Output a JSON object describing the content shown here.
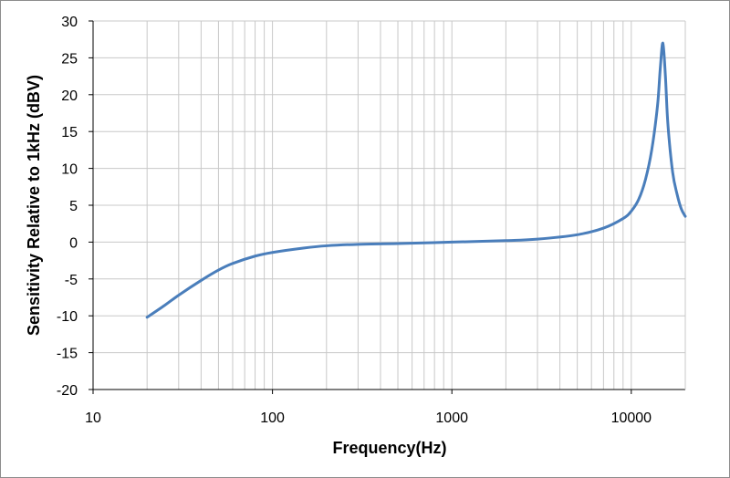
{
  "chart_data": {
    "type": "line",
    "xlabel": "Frequency(Hz)",
    "ylabel": "Sensitivity Relative to 1kHz (dBV)",
    "x_scale": "log",
    "xlim": [
      10,
      20000
    ],
    "ylim": [
      -20,
      30
    ],
    "x_ticks": [
      "10",
      "100",
      "1000",
      "10000"
    ],
    "y_ticks": [
      "30",
      "25",
      "20",
      "15",
      "10",
      "5",
      "0",
      "-5",
      "-10",
      "-15",
      "-20"
    ],
    "grid": true,
    "legend": "none",
    "colors": {
      "series": "#4a7ebb",
      "grid": "#c8c8c8",
      "axis": "#000000"
    },
    "series": [
      {
        "x": [
          20,
          25,
          30,
          40,
          50,
          60,
          80,
          100,
          150,
          200,
          300,
          500,
          1000,
          2000,
          3000,
          5000,
          7000,
          9000,
          10000,
          11000,
          12000,
          13000,
          14000,
          14500,
          15000,
          15500,
          16000,
          17000,
          18000,
          19000,
          20000
        ],
        "y": [
          -10.2,
          -8.6,
          -7.2,
          -5.2,
          -3.8,
          -2.9,
          -1.9,
          -1.4,
          -0.8,
          -0.5,
          -0.3,
          -0.2,
          0.0,
          0.2,
          0.4,
          1.0,
          1.9,
          3.2,
          4.2,
          5.8,
          8.5,
          12.5,
          18.5,
          23.5,
          27.0,
          22.5,
          16.0,
          9.5,
          6.5,
          4.5,
          3.5
        ]
      }
    ]
  }
}
